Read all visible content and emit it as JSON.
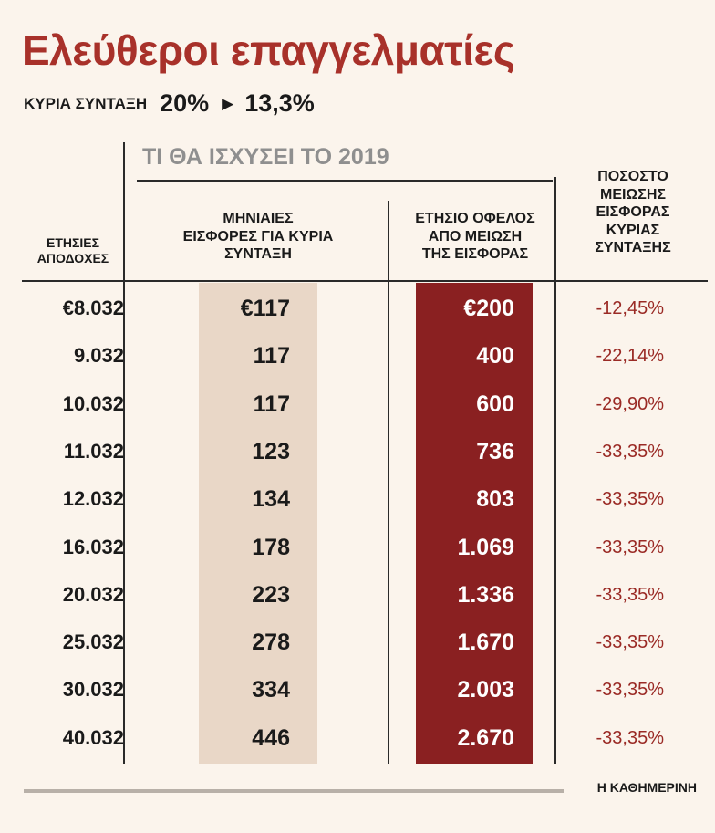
{
  "title": "Ελεύθεροι επαγγελματίες",
  "subtitle": {
    "label": "ΚΥΡΙΑ ΣΥΝΤΑΞΗ",
    "from": "20%",
    "to": "13,3%",
    "arrow_icon": "triangle-right-icon"
  },
  "group_title": "ΤΙ ΘΑ ΙΣΧΥΣΕΙ ΤΟ 2019",
  "headers": {
    "income": "ΕΤΗΣΙΕΣ\nΑΠΟΔΟΧΕΣ",
    "monthly": "ΜΗΝΙΑΙΕΣ\nΕΙΣΦΟΡΕΣ ΓΙΑ ΚΥΡΙΑ\nΣΥΝΤΑΞΗ",
    "benefit": "ΕΤΗΣΙΟ ΟΦΕΛΟΣ\nΑΠΟ ΜΕΙΩΣΗ\nΤΗΣ ΕΙΣΦΟΡΑΣ",
    "pct": "ΠΟΣΟΣΤΟ\nΜΕΙΩΣΗΣ\nΕΙΣΦΟΡΑΣ\nΚΥΡΙΑΣ\nΣΥΝΤΑΞΗΣ"
  },
  "colors": {
    "title": "#a8312a",
    "benefit_column": "#8a2021",
    "monthly_column": "#e9d7c7",
    "pct_text": "#9a2a25",
    "background": "#fbf4ec"
  },
  "chart_data": {
    "type": "table",
    "columns": [
      "ΕΤΗΣΙΕΣ ΑΠΟΔΟΧΕΣ",
      "ΜΗΝΙΑΙΕΣ ΕΙΣΦΟΡΕΣ ΓΙΑ ΚΥΡΙΑ ΣΥΝΤΑΞΗ",
      "ΕΤΗΣΙΟ ΟΦΕΛΟΣ ΑΠΟ ΜΕΙΩΣΗ ΤΗΣ ΕΙΣΦΟΡΑΣ",
      "ΠΟΣΟΣΤΟ ΜΕΙΩΣΗΣ ΕΙΣΦΟΡΑΣ ΚΥΡΙΑΣ ΣΥΝΤΑΞΗΣ"
    ],
    "rows": [
      [
        "€8.032",
        "€117",
        "€200",
        "-12,45%"
      ],
      [
        "9.032",
        "117",
        "400",
        "-22,14%"
      ],
      [
        "10.032",
        "117",
        "600",
        "-29,90%"
      ],
      [
        "11.032",
        "123",
        "736",
        "-33,35%"
      ],
      [
        "12.032",
        "134",
        "803",
        "-33,35%"
      ],
      [
        "16.032",
        "178",
        "1.069",
        "-33,35%"
      ],
      [
        "20.032",
        "223",
        "1.336",
        "-33,35%"
      ],
      [
        "25.032",
        "278",
        "1.670",
        "-33,35%"
      ],
      [
        "30.032",
        "334",
        "2.003",
        "-33,35%"
      ],
      [
        "40.032",
        "446",
        "2.670",
        "-33,35%"
      ]
    ]
  },
  "source": "Η ΚΑΘΗΜΕΡΙΝΗ"
}
